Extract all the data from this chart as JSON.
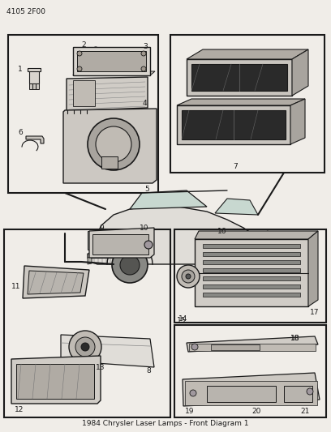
{
  "part_number": "4105 2F00",
  "background_color": "#f0ede8",
  "figsize": [
    4.08,
    5.33
  ],
  "dpi": 100,
  "title": "1984 Chrysler Laser Lamps - Front Diagram 1"
}
